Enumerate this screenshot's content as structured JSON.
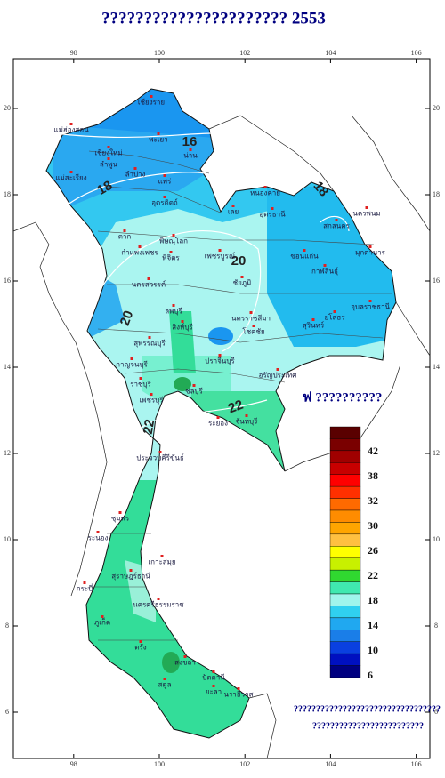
{
  "title": "??????????????????????  2553",
  "lon_ticks": [
    98,
    100,
    102,
    104,
    106
  ],
  "lat_ticks": [
    20,
    18,
    16,
    14,
    12,
    10,
    8,
    6
  ],
  "contour_labels": [
    16,
    18,
    18,
    20,
    20,
    22,
    22
  ],
  "places": [
    "เชียงราย",
    "แม่ฮ่องสอน",
    "เชียงใหม่",
    "พะเยา",
    "น่าน",
    "ลำพูน",
    "ลำปาง",
    "แพร่",
    "แม่สะเรียง",
    "อุตรดิตถ์",
    "หนองคาย",
    "เลย",
    "อุดรธานี",
    "นครพนม",
    "สกลนคร",
    "ตาก",
    "พิษณุโลก",
    "มุกดาหาร",
    "กำแพงเพชร",
    "พิจิตร",
    "เพชรบูรณ์",
    "ขอนแก่น",
    "กาฬสินธุ์",
    "นครสวรรค์",
    "ชัยภูมิ",
    "อุบลราชธานี",
    "ยโสธร",
    "ลพบุรี",
    "สุรินทร์",
    "สิงห์บุรี",
    "นครราชสีมา",
    "โชคชัย",
    "สุพรรณบุรี",
    "กาญจนบุรี",
    "ปราจีนบุรี",
    "อรัญประเทศ",
    "ราชบุรี",
    "ชลบุรี",
    "เพชรบุรี",
    "ระยอง",
    "จันทบุรี",
    "ประจวบคีรีขันธ์",
    "ชุมพร",
    "ระนอง",
    "เกาะสมุย",
    "สุราษฎร์ธานี",
    "กระบี่",
    "นครศรีธรรมราช",
    "ภูเก็ต",
    "ตรัง",
    "สงขลา",
    "ปัตตานี",
    "สตูล",
    "ยะลา",
    "นราธิวาส"
  ],
  "legend": {
    "title": "ฟ ??????????",
    "labels": [
      42,
      38,
      32,
      30,
      26,
      22,
      18,
      14,
      10,
      6
    ]
  },
  "footer": [
    "?????????????????????????????????",
    "?????????????????????????"
  ]
}
